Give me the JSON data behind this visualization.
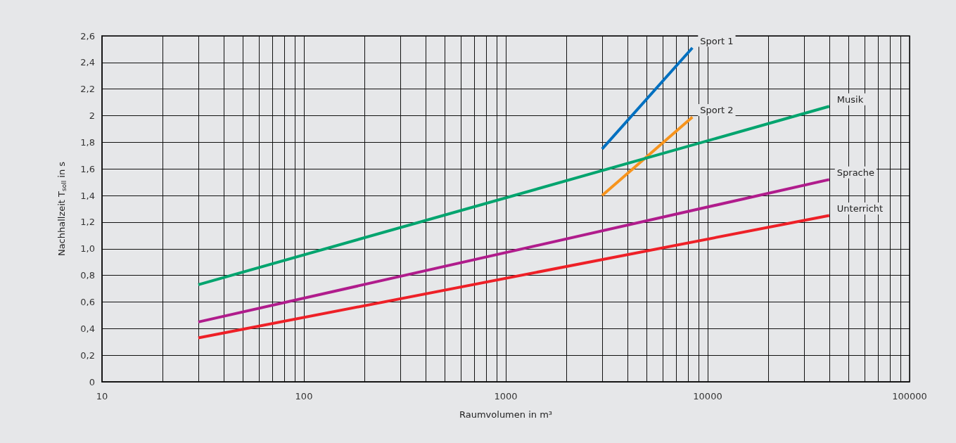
{
  "chart_data": {
    "type": "line",
    "xlabel": "Raumvolumen in m³",
    "ylabel": "Nachhallzeit T$_{soll}$ in s",
    "log": "x",
    "grid": true,
    "line_style": "solid",
    "xlim": [
      10,
      100000
    ],
    "ylim": [
      0,
      2.6
    ],
    "xticks": [
      10,
      {
        "value": 20,
        "label": null
      },
      {
        "value": 30,
        "label": null
      },
      {
        "value": 40,
        "label": null
      },
      {
        "value": 50,
        "label": null
      },
      {
        "value": 60,
        "label": null
      },
      {
        "value": 70,
        "label": null
      },
      {
        "value": 80,
        "label": null
      },
      {
        "value": 90,
        "label": null
      },
      100,
      {
        "value": 200,
        "label": null
      },
      {
        "value": 300,
        "label": null
      },
      {
        "value": 400,
        "label": null
      },
      {
        "value": 500,
        "label": null
      },
      {
        "value": 600,
        "label": null
      },
      {
        "value": 700,
        "label": null
      },
      {
        "value": 800,
        "label": null
      },
      {
        "value": 900,
        "label": null
      },
      1000,
      {
        "value": 2000,
        "label": null
      },
      {
        "value": 3000,
        "label": null
      },
      {
        "value": 4000,
        "label": null
      },
      {
        "value": 5000,
        "label": null
      },
      {
        "value": 6000,
        "label": null
      },
      {
        "value": 7000,
        "label": null
      },
      {
        "value": 8000,
        "label": null
      },
      {
        "value": 9000,
        "label": null
      },
      10000,
      {
        "value": 20000,
        "label": null
      },
      {
        "value": 30000,
        "label": null
      },
      {
        "value": 40000,
        "label": null
      },
      {
        "value": 50000,
        "label": null
      },
      {
        "value": 60000,
        "label": null
      },
      {
        "value": 70000,
        "label": null
      },
      {
        "value": 80000,
        "label": null
      },
      {
        "value": 90000,
        "label": null
      },
      100000
    ],
    "yticks": [
      0,
      {
        "value": 0.2,
        "label": "0,2"
      },
      {
        "value": 0.4,
        "label": "0,4"
      },
      {
        "value": 0.6,
        "label": "0,6"
      },
      {
        "value": 0.8,
        "label": "0,8"
      },
      {
        "value": 1.0,
        "label": "1,0"
      },
      {
        "value": 1.2,
        "label": "1,2"
      },
      {
        "value": 1.4,
        "label": "1,4"
      },
      {
        "value": 1.6,
        "label": "1,6"
      },
      {
        "value": 1.8,
        "label": "1,8"
      },
      2,
      {
        "value": 2.2,
        "label": "2,2"
      },
      {
        "value": 2.4,
        "label": "2,4"
      },
      {
        "value": 2.6,
        "label": "2,6"
      }
    ],
    "series": [
      {
        "name": "Sport 1",
        "color": "#0070c0",
        "x": [
          3000,
          8400
        ],
        "values": [
          1.75,
          2.51
        ]
      },
      {
        "name": "Sport 2",
        "color": "#f7941d",
        "x": [
          3000,
          8400
        ],
        "values": [
          1.4,
          1.99
        ]
      },
      {
        "name": "Musik",
        "color": "#00a46e",
        "x": [
          30,
          40000
        ],
        "values": [
          0.73,
          2.07
        ]
      },
      {
        "name": "Sprache",
        "color": "#b01c8c",
        "x": [
          30,
          40000
        ],
        "values": [
          0.45,
          1.52
        ]
      },
      {
        "name": "Unterricht",
        "color": "#ee2027",
        "x": [
          30,
          40000
        ],
        "values": [
          0.33,
          1.25
        ]
      }
    ]
  }
}
